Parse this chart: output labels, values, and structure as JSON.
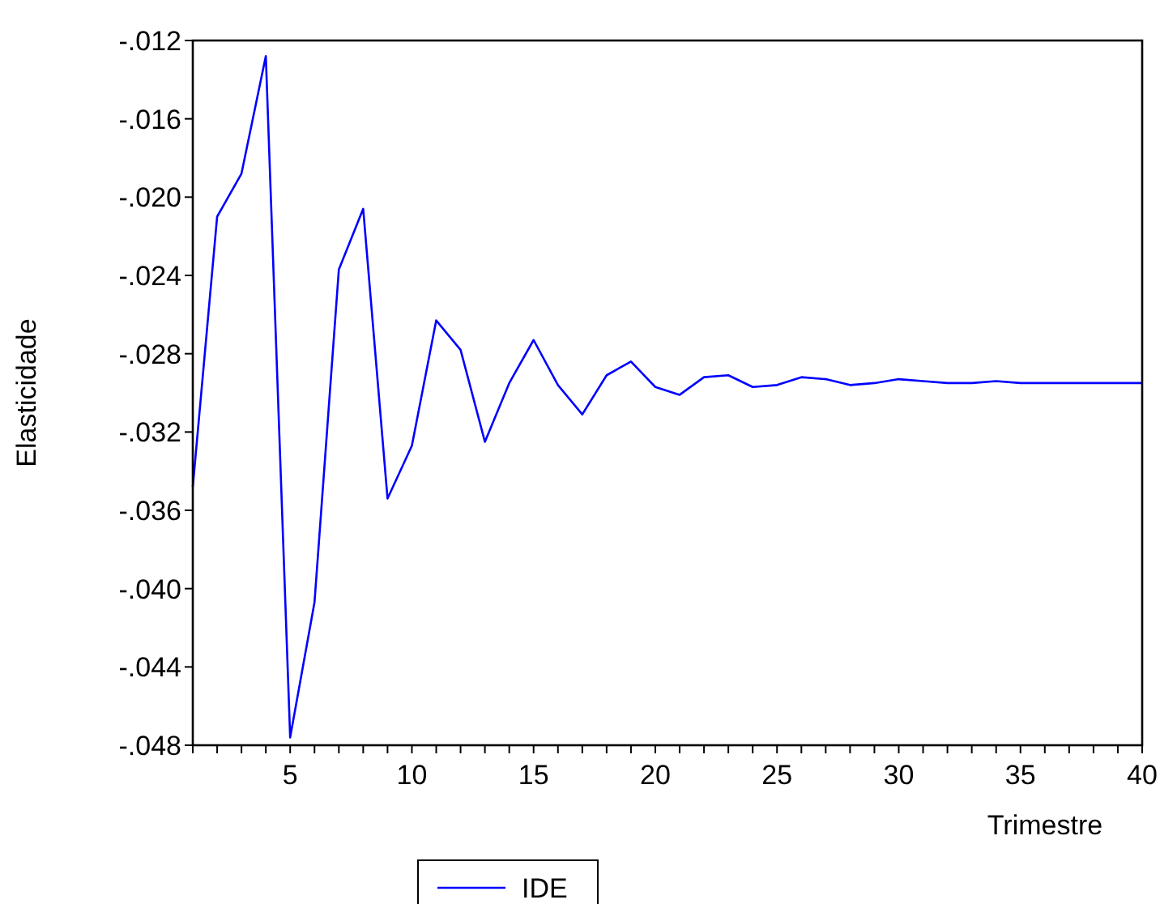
{
  "chart_data": {
    "type": "line",
    "xlabel": "Trimestre",
    "ylabel": "Elasticidade",
    "x": [
      1,
      2,
      3,
      4,
      5,
      6,
      7,
      8,
      9,
      10,
      11,
      12,
      13,
      14,
      15,
      16,
      17,
      18,
      19,
      20,
      21,
      22,
      23,
      24,
      25,
      26,
      27,
      28,
      29,
      30,
      31,
      32,
      33,
      34,
      35,
      36,
      37,
      38,
      39,
      40
    ],
    "series": [
      {
        "name": "IDE",
        "color": "#0000ff",
        "values": [
          -0.0348,
          -0.021,
          -0.0188,
          -0.0128,
          -0.0476,
          -0.0407,
          -0.0237,
          -0.0206,
          -0.0354,
          -0.0327,
          -0.0263,
          -0.0278,
          -0.0325,
          -0.0295,
          -0.0273,
          -0.0296,
          -0.0311,
          -0.0291,
          -0.0284,
          -0.0297,
          -0.0301,
          -0.0292,
          -0.0291,
          -0.0297,
          -0.0296,
          -0.0292,
          -0.0293,
          -0.0296,
          -0.0295,
          -0.0293,
          -0.0294,
          -0.0295,
          -0.0295,
          -0.0294,
          -0.0295,
          -0.0295,
          -0.0295,
          -0.0295,
          -0.0295,
          -0.0295
        ]
      }
    ],
    "xlim": [
      1,
      40
    ],
    "xticks": [
      {
        "value": 1,
        "label": null
      },
      {
        "value": 2,
        "label": null
      },
      {
        "value": 3,
        "label": null
      },
      {
        "value": 4,
        "label": null
      },
      5,
      {
        "value": 6,
        "label": null
      },
      {
        "value": 7,
        "label": null
      },
      {
        "value": 8,
        "label": null
      },
      {
        "value": 9,
        "label": null
      },
      10,
      {
        "value": 11,
        "label": null
      },
      {
        "value": 12,
        "label": null
      },
      {
        "value": 13,
        "label": null
      },
      {
        "value": 14,
        "label": null
      },
      15,
      {
        "value": 16,
        "label": null
      },
      {
        "value": 17,
        "label": null
      },
      {
        "value": 18,
        "label": null
      },
      {
        "value": 19,
        "label": null
      },
      20,
      {
        "value": 21,
        "label": null
      },
      {
        "value": 22,
        "label": null
      },
      {
        "value": 23,
        "label": null
      },
      {
        "value": 24,
        "label": null
      },
      25,
      {
        "value": 26,
        "label": null
      },
      {
        "value": 27,
        "label": null
      },
      {
        "value": 28,
        "label": null
      },
      {
        "value": 29,
        "label": null
      },
      30,
      {
        "value": 31,
        "label": null
      },
      {
        "value": 32,
        "label": null
      },
      {
        "value": 33,
        "label": null
      },
      {
        "value": 34,
        "label": null
      },
      35,
      {
        "value": 36,
        "label": null
      },
      {
        "value": 37,
        "label": null
      },
      {
        "value": 38,
        "label": null
      },
      {
        "value": 39,
        "label": null
      },
      40
    ],
    "ylim": [
      -0.048,
      -0.012
    ],
    "yticks": [
      {
        "value": -0.048,
        "label": "-.048"
      },
      {
        "value": -0.044,
        "label": "-.044"
      },
      {
        "value": -0.04,
        "label": "-.040"
      },
      {
        "value": -0.036,
        "label": "-.036"
      },
      {
        "value": -0.032,
        "label": "-.032"
      },
      {
        "value": -0.028,
        "label": "-.028"
      },
      {
        "value": -0.024,
        "label": "-.024"
      },
      {
        "value": -0.02,
        "label": "-.020"
      },
      {
        "value": -0.016,
        "label": "-.016"
      },
      {
        "value": -0.012,
        "label": "-.012"
      }
    ],
    "grid": false,
    "legend": "bottom",
    "marker": "none",
    "line_style": "solid"
  }
}
